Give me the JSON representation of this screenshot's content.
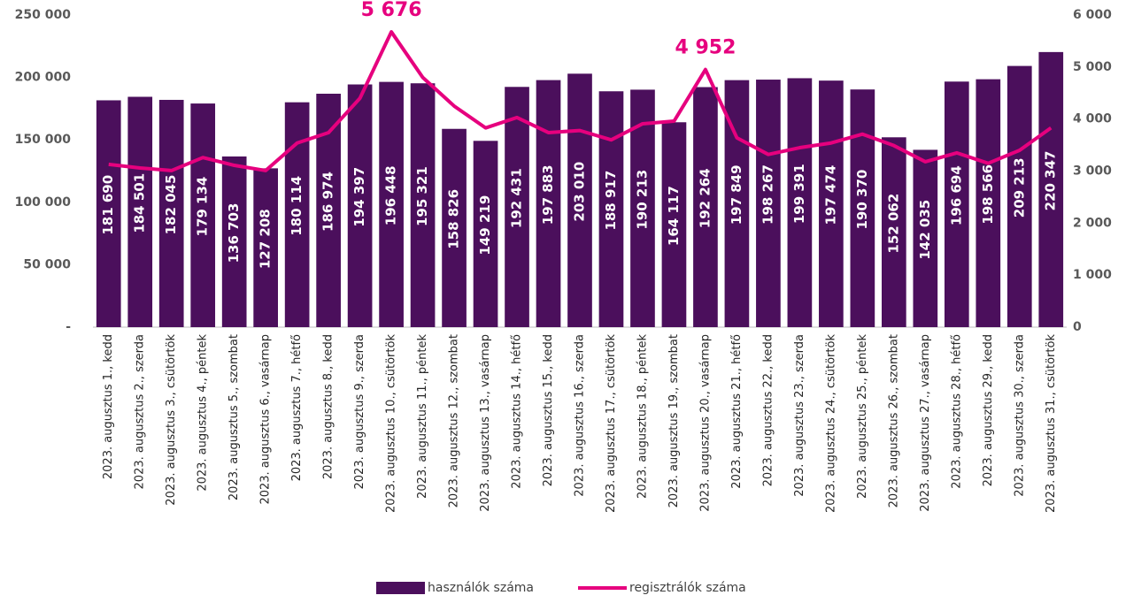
{
  "chart_data": {
    "type": "bar_line",
    "categories": [
      "2023. augusztus 1., kedd",
      "2023. augusztus 2., szerda",
      "2023. augusztus 3., csütörtök",
      "2023. augusztus 4., péntek",
      "2023. augusztus 5., szombat",
      "2023. augusztus 6., vasárnap",
      "2023. augusztus 7., hétfő",
      "2023. augusztus 8., kedd",
      "2023. augusztus 9., szerda",
      "2023. augusztus 10., csütörtök",
      "2023. augusztus 11., péntek",
      "2023. augusztus 12., szombat",
      "2023. augusztus 13., vasárnap",
      "2023. augusztus 14., hétfő",
      "2023. augusztus 15., kedd",
      "2023. augusztus 16., szerda",
      "2023. augusztus 17., csütörtök",
      "2023. augusztus 18., péntek",
      "2023. augusztus 19., szombat",
      "2023. augusztus 20., vasárnap",
      "2023. augusztus 21., hétfő",
      "2023. augusztus 22., kedd",
      "2023. augusztus 23., szerda",
      "2023. augusztus 24., csütörtök",
      "2023. augusztus 25., péntek",
      "2023. augusztus 26., szombat",
      "2023. augusztus 27., vasárnap",
      "2023. augusztus 28., hétfő",
      "2023. augusztus 29., kedd",
      "2023. augusztus 30., szerda",
      "2023. augusztus 31., csütörtök"
    ],
    "series": [
      {
        "name": "használók száma",
        "kind": "bar",
        "color": "#4b0f5c",
        "values": [
          181690,
          184501,
          182045,
          179134,
          136703,
          127208,
          180114,
          186974,
          194397,
          196448,
          195321,
          158826,
          149219,
          192431,
          197883,
          203010,
          188917,
          190213,
          164117,
          192264,
          197849,
          198267,
          199391,
          197474,
          190370,
          152062,
          142035,
          196694,
          198566,
          209213,
          220347
        ],
        "value_labels": [
          "181 690",
          "184 501",
          "182 045",
          "179 134",
          "136 703",
          "127 208",
          "180 114",
          "186 974",
          "194 397",
          "196 448",
          "195 321",
          "158 826",
          "149 219",
          "192 431",
          "197 883",
          "203 010",
          "188 917",
          "190 213",
          "164 117",
          "192 264",
          "197 849",
          "198 267",
          "199 391",
          "197 474",
          "190 370",
          "152 062",
          "142 035",
          "196 694",
          "198 566",
          "209 213",
          "220 347"
        ]
      },
      {
        "name": "regisztrálók száma",
        "kind": "line",
        "axis": "y2",
        "color": "#e6007e",
        "values": [
          3130,
          3060,
          3010,
          3260,
          3110,
          3010,
          3540,
          3740,
          4400,
          5676,
          4800,
          4250,
          3830,
          4030,
          3740,
          3780,
          3600,
          3910,
          3960,
          4952,
          3640,
          3320,
          3450,
          3540,
          3710,
          3490,
          3180,
          3350,
          3150,
          3400,
          3830
        ],
        "value_labels": [
          null,
          null,
          null,
          null,
          null,
          null,
          null,
          null,
          null,
          "5 676",
          null,
          null,
          null,
          null,
          null,
          null,
          null,
          null,
          null,
          "4 952",
          null,
          null,
          null,
          null,
          null,
          null,
          null,
          null,
          null,
          null,
          null
        ]
      }
    ],
    "ylim": [
      0,
      250000
    ],
    "yticks": [
      {
        "value": 0,
        "label": "-"
      },
      {
        "value": 50000,
        "label": "50 000"
      },
      {
        "value": 100000,
        "label": "100 000"
      },
      {
        "value": 150000,
        "label": "150 000"
      },
      {
        "value": 200000,
        "label": "200 000"
      },
      {
        "value": 250000,
        "label": "250 000"
      }
    ],
    "y2lim": [
      0,
      6000
    ],
    "y2ticks": [
      0,
      {
        "value": 1000,
        "label": "1 000"
      },
      {
        "value": 2000,
        "label": "2 000"
      },
      {
        "value": 3000,
        "label": "3 000"
      },
      {
        "value": 4000,
        "label": "4 000"
      },
      {
        "value": 5000,
        "label": "5 000"
      },
      {
        "value": 6000,
        "label": "6 000"
      }
    ],
    "legend": "bottom"
  }
}
